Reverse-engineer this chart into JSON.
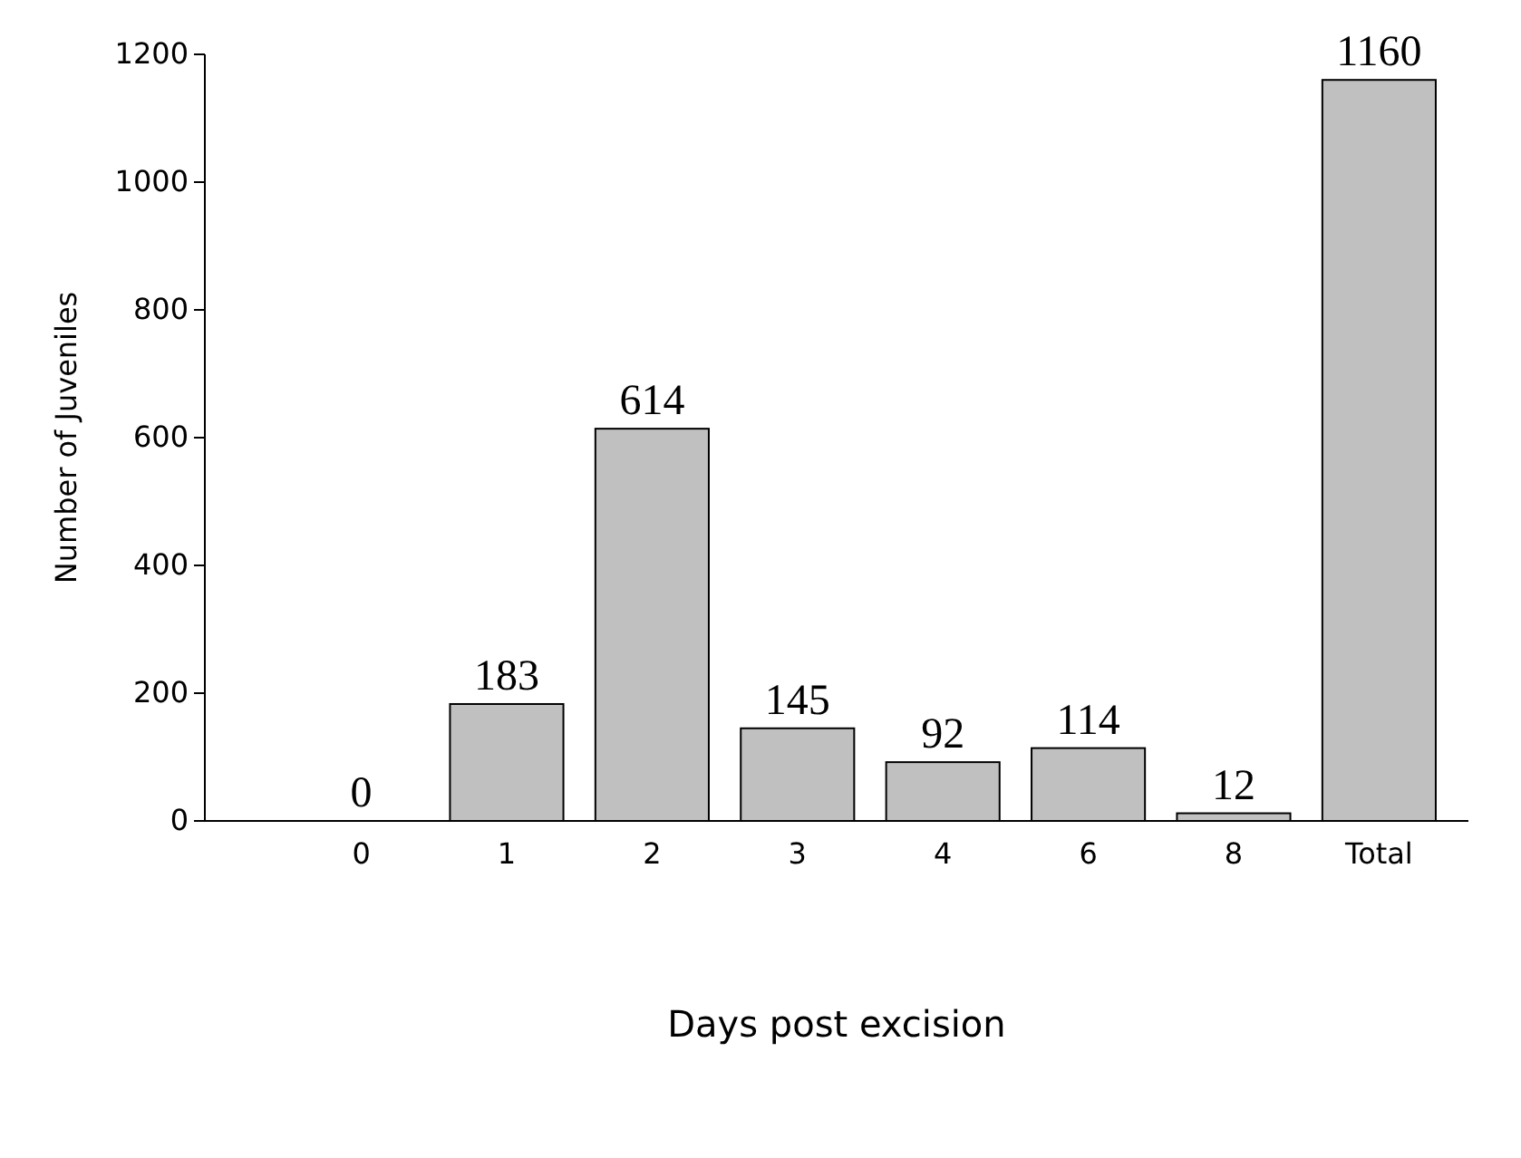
{
  "chart_data": {
    "type": "bar",
    "xlabel": "Days post excision",
    "ylabel": "Number of Juveniles",
    "categories": [
      "0",
      "1",
      "2",
      "3",
      "4",
      "6",
      "8",
      "Total"
    ],
    "values": [
      0,
      183,
      614,
      145,
      92,
      114,
      12,
      1160
    ],
    "color": "#c0c0c0",
    "ylim": [
      0,
      1200
    ],
    "yticks": [
      0,
      200,
      400,
      600,
      800,
      1000,
      1200
    ],
    "data_labels": true,
    "grid": false
  }
}
